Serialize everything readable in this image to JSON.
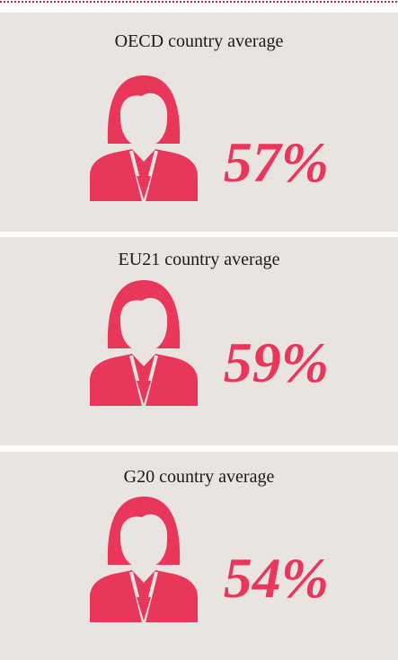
{
  "panels": [
    {
      "label": "OECD country average",
      "value": "57%"
    },
    {
      "label": "EU21 country average",
      "value": "59%"
    },
    {
      "label": "G20 country average",
      "value": "54%"
    }
  ]
}
